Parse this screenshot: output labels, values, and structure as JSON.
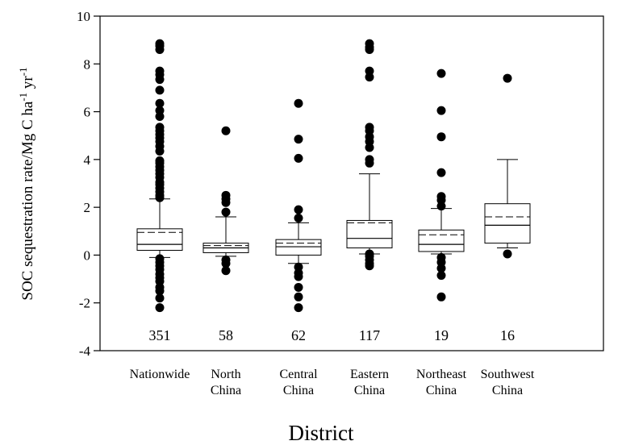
{
  "chart_data": {
    "type": "box",
    "ylabel": "SOC sequestration rate/Mg C ha",
    "ylabel_sup1": "-1",
    "ylabel_mid": " yr",
    "ylabel_sup2": "-1",
    "xlabel": "District",
    "ylim": [
      -4,
      10
    ],
    "yticks": [
      -4,
      -2,
      0,
      2,
      4,
      6,
      8,
      10
    ],
    "grid": false,
    "categories": [
      {
        "label_lines": [
          "Nationwide"
        ],
        "n": "351",
        "q1": 0.2,
        "median": 0.45,
        "q3": 1.1,
        "mean": 0.95,
        "whisker_low": -0.1,
        "whisker_high": 2.35,
        "outliers": [
          8.85,
          8.75,
          8.6,
          7.7,
          7.55,
          7.35,
          6.9,
          6.35,
          6.05,
          5.8,
          5.35,
          5.2,
          5.05,
          4.9,
          4.75,
          4.55,
          4.35,
          3.95,
          3.85,
          3.7,
          3.55,
          3.4,
          3.25,
          3.05,
          2.95,
          2.8,
          2.65,
          2.5,
          2.4,
          -0.15,
          -0.3,
          -0.45,
          -0.6,
          -0.8,
          -0.95,
          -1.1,
          -1.35,
          -1.5,
          -1.8,
          -2.2
        ]
      },
      {
        "label_lines": [
          "North",
          "China"
        ],
        "n": "58",
        "q1": 0.1,
        "median": 0.3,
        "q3": 0.5,
        "mean": 0.4,
        "whisker_low": -0.05,
        "whisker_high": 1.6,
        "outliers": [
          5.2,
          2.5,
          2.35,
          2.2,
          1.8,
          -0.2,
          -0.35,
          -0.65
        ]
      },
      {
        "label_lines": [
          "Central",
          "China"
        ],
        "n": "62",
        "q1": 0.0,
        "median": 0.35,
        "q3": 0.65,
        "mean": 0.5,
        "whisker_low": -0.35,
        "whisker_high": 1.35,
        "outliers": [
          6.35,
          4.85,
          4.05,
          1.9,
          1.55,
          -0.5,
          -0.75,
          -0.9,
          -1.35,
          -1.75,
          -2.2
        ]
      },
      {
        "label_lines": [
          "Eastern",
          "China"
        ],
        "n": "117",
        "q1": 0.3,
        "median": 0.7,
        "q3": 1.45,
        "mean": 1.35,
        "whisker_low": 0.05,
        "whisker_high": 3.4,
        "outliers": [
          8.85,
          8.7,
          8.6,
          7.7,
          7.45,
          5.35,
          5.2,
          4.95,
          4.75,
          4.5,
          4.0,
          3.85,
          0.05,
          -0.05,
          -0.2,
          -0.35,
          -0.45
        ]
      },
      {
        "label_lines": [
          "Northeast",
          "China"
        ],
        "n": "19",
        "q1": 0.15,
        "median": 0.45,
        "q3": 1.05,
        "mean": 0.85,
        "whisker_low": 0.05,
        "whisker_high": 1.95,
        "outliers": [
          7.6,
          6.05,
          4.95,
          3.45,
          2.45,
          2.3,
          2.05,
          -0.1,
          -0.3,
          -0.55,
          -0.85,
          -1.75
        ]
      },
      {
        "label_lines": [
          "Southwest",
          "China"
        ],
        "n": "16",
        "q1": 0.5,
        "median": 1.25,
        "q3": 2.15,
        "mean": 1.6,
        "whisker_low": 0.3,
        "whisker_high": 4.0,
        "outliers": [
          7.4,
          0.05
        ]
      }
    ]
  }
}
